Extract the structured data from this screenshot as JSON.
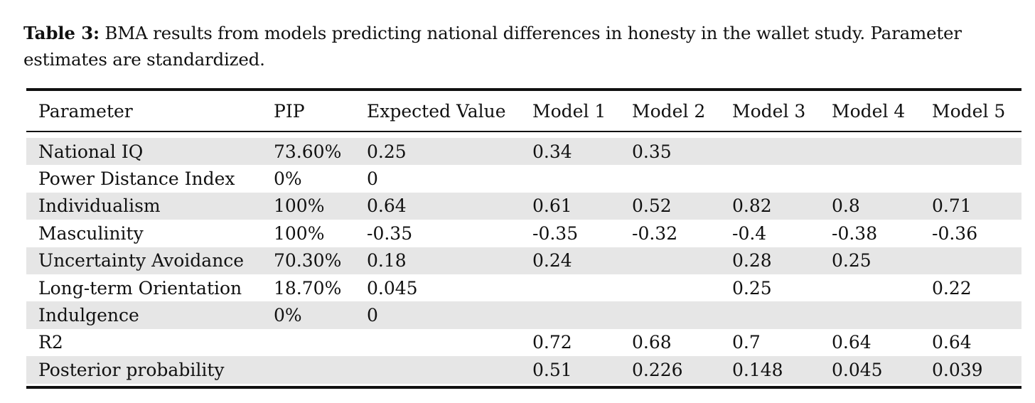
{
  "caption": {
    "label": "Table 3:",
    "text": " BMA results from models predicting national differences in honesty in the wallet study. Parameter estimates are standardized."
  },
  "table": {
    "headers": [
      "Parameter",
      "PIP",
      "Expected Value",
      "Model 1",
      "Model 2",
      "Model 3",
      "Model 4",
      "Model 5"
    ],
    "rows": [
      [
        "National IQ",
        "73.60%",
        "0.25",
        "0.34",
        "0.35",
        "",
        "",
        ""
      ],
      [
        "Power Distance Index",
        "0%",
        "0",
        "",
        "",
        "",
        "",
        ""
      ],
      [
        "Individualism",
        "100%",
        "0.64",
        "0.61",
        "0.52",
        "0.82",
        "0.8",
        "0.71"
      ],
      [
        "Masculinity",
        "100%",
        "-0.35",
        "-0.35",
        "-0.32",
        "-0.4",
        "-0.38",
        "-0.36"
      ],
      [
        "Uncertainty Avoidance",
        "70.30%",
        "0.18",
        "0.24",
        "",
        "0.28",
        "0.25",
        ""
      ],
      [
        "Long-term Orientation",
        "18.70%",
        "0.045",
        "",
        "",
        "0.25",
        "",
        "0.22"
      ],
      [
        "Indulgence",
        "0%",
        "0",
        "",
        "",
        "",
        "",
        ""
      ],
      [
        "R2",
        "",
        "",
        "0.72",
        "0.68",
        "0.7",
        "0.64",
        "0.64"
      ],
      [
        "Posterior probability",
        "",
        "",
        "0.51",
        "0.226",
        "0.148",
        "0.045",
        "0.039"
      ]
    ],
    "row_shading": "alternating, first row shaded",
    "shade_color": "#e6e6e6"
  }
}
